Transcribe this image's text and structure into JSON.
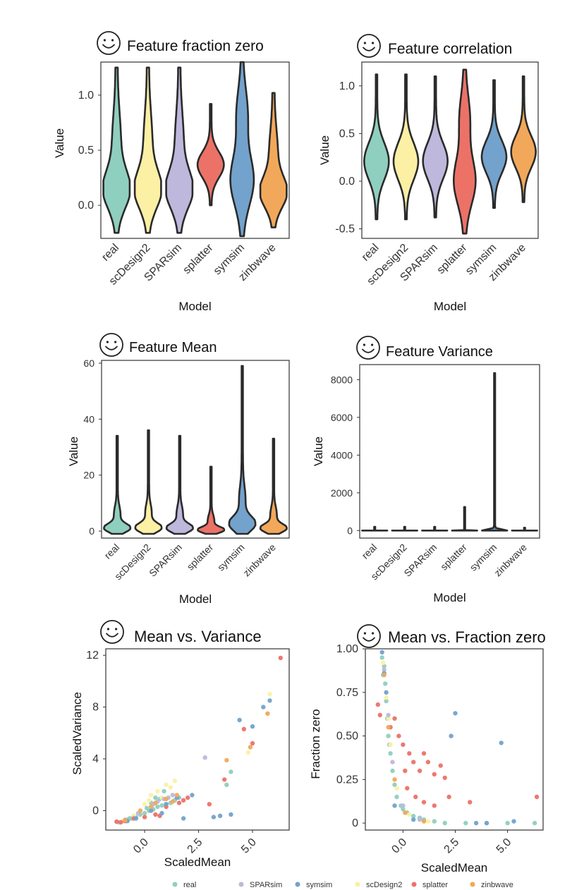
{
  "colors": {
    "real": "#8fcfbf",
    "scDesign2": "#fbf0a4",
    "SPARsim": "#bdb8dc",
    "splatter": "#ec7268",
    "symsim": "#73a2cc",
    "zinbwave": "#f2a85a",
    "outline": "#2a2a2a"
  },
  "icons": [
    "smiley-icon"
  ],
  "chart_data": [
    {
      "type": "violin",
      "title": "Feature fraction zero",
      "xlabel": "Model",
      "ylabel": "Value",
      "ylim": [
        -0.3,
        1.3
      ],
      "yticks": [
        0.0,
        0.5,
        1.0
      ],
      "ytick_labels": [
        "0.0",
        "0.5",
        "1.0"
      ],
      "categories": [
        "real",
        "scDesign2",
        "SPARsim",
        "splatter",
        "symsim",
        "zinbwave"
      ],
      "series": [
        {
          "name": "real",
          "min": -0.25,
          "max": 1.25,
          "median": 0.15,
          "shape": "wide-bottom"
        },
        {
          "name": "scDesign2",
          "min": -0.25,
          "max": 1.25,
          "median": 0.2,
          "shape": "wide-bottom"
        },
        {
          "name": "SPARsim",
          "min": -0.25,
          "max": 1.25,
          "median": 0.25,
          "shape": "wide-bottom"
        },
        {
          "name": "splatter",
          "min": 0.0,
          "max": 0.92,
          "median": 0.4,
          "shape": "center"
        },
        {
          "name": "symsim",
          "min": -0.28,
          "max": 1.3,
          "median": 0.25,
          "shape": "spread"
        },
        {
          "name": "zinbwave",
          "min": -0.2,
          "max": 1.02,
          "median": 0.2,
          "shape": "wide-bottom"
        }
      ]
    },
    {
      "type": "violin",
      "title": "Feature correlation",
      "xlabel": "Model",
      "ylabel": "Value",
      "ylim": [
        -0.6,
        1.25
      ],
      "yticks": [
        -0.5,
        0.0,
        0.5,
        1.0
      ],
      "ytick_labels": [
        "-0.5",
        "0.0",
        "0.5",
        "1.0"
      ],
      "categories": [
        "real",
        "scDesign2",
        "SPARsim",
        "splatter",
        "symsim",
        "zinbwave"
      ],
      "series": [
        {
          "name": "real",
          "min": -0.4,
          "max": 1.12,
          "median": 0.1,
          "shape": "center"
        },
        {
          "name": "scDesign2",
          "min": -0.4,
          "max": 1.12,
          "median": 0.1,
          "shape": "center"
        },
        {
          "name": "SPARsim",
          "min": -0.38,
          "max": 1.1,
          "median": 0.15,
          "shape": "center"
        },
        {
          "name": "splatter",
          "min": -0.55,
          "max": 1.17,
          "median": 0.0,
          "shape": "spread"
        },
        {
          "name": "symsim",
          "min": -0.28,
          "max": 1.06,
          "median": 0.1,
          "shape": "center"
        },
        {
          "name": "zinbwave",
          "min": -0.22,
          "max": 1.1,
          "median": 0.2,
          "shape": "center"
        }
      ]
    },
    {
      "type": "violin",
      "title": "Feature Mean",
      "xlabel": "Model",
      "ylabel": "Value",
      "ylim": [
        -2.5,
        61
      ],
      "yticks": [
        0,
        20,
        40,
        60
      ],
      "ytick_labels": [
        "0",
        "20",
        "40",
        "60"
      ],
      "categories": [
        "real",
        "scDesign2",
        "SPARsim",
        "splatter",
        "symsim",
        "zinbwave"
      ],
      "series": [
        {
          "name": "real",
          "min": -1,
          "max": 34,
          "median": 2,
          "shape": "base"
        },
        {
          "name": "scDesign2",
          "min": -1,
          "max": 36,
          "median": 2,
          "shape": "base"
        },
        {
          "name": "SPARsim",
          "min": -1,
          "max": 34,
          "median": 2,
          "shape": "base"
        },
        {
          "name": "splatter",
          "min": -1,
          "max": 23,
          "median": 3,
          "shape": "base"
        },
        {
          "name": "symsim",
          "min": -1,
          "max": 59,
          "median": 2,
          "shape": "base"
        },
        {
          "name": "zinbwave",
          "min": -1,
          "max": 33,
          "median": 2,
          "shape": "base"
        }
      ]
    },
    {
      "type": "violin",
      "title": "Feature Variance",
      "xlabel": "Model",
      "ylabel": "Value",
      "ylim": [
        -400,
        8800
      ],
      "yticks": [
        0,
        2000,
        4000,
        6000,
        8000
      ],
      "ytick_labels": [
        "0",
        "2000",
        "4000",
        "6000",
        "8000"
      ],
      "categories": [
        "real",
        "scDesign2",
        "SPARsim",
        "splatter",
        "symsim",
        "zinbwave"
      ],
      "series": [
        {
          "name": "real",
          "min": 0,
          "max": 200,
          "median": 0,
          "shape": "flat"
        },
        {
          "name": "scDesign2",
          "min": 0,
          "max": 200,
          "median": 0,
          "shape": "flat"
        },
        {
          "name": "SPARsim",
          "min": 0,
          "max": 200,
          "median": 0,
          "shape": "flat"
        },
        {
          "name": "splatter",
          "min": 0,
          "max": 1250,
          "median": 0,
          "shape": "flat"
        },
        {
          "name": "symsim",
          "min": 0,
          "max": 8350,
          "median": 0,
          "shape": "flat"
        },
        {
          "name": "zinbwave",
          "min": 0,
          "max": 150,
          "median": 0,
          "shape": "flat"
        }
      ]
    },
    {
      "type": "scatter",
      "title": "Mean vs. Variance",
      "xlabel": "ScaledMean",
      "ylabel": "ScaledVariance",
      "xlim": [
        -1.8,
        6.7
      ],
      "ylim": [
        -1.5,
        12.5
      ],
      "xticks": [
        0.0,
        2.5,
        5.0
      ],
      "xtick_labels": [
        "0.0",
        "2.5",
        "5.0"
      ],
      "yticks": [
        0,
        4,
        8,
        12
      ],
      "ytick_labels": [
        "0",
        "4",
        "8",
        "12"
      ],
      "series": [
        {
          "name": "real",
          "points": [
            [
              -1.2,
              -0.9
            ],
            [
              -1.0,
              -0.8
            ],
            [
              -0.8,
              -0.7
            ],
            [
              -0.6,
              -0.6
            ],
            [
              -0.4,
              -0.5
            ],
            [
              -0.2,
              -0.3
            ],
            [
              0.0,
              -0.2
            ],
            [
              0.2,
              0.0
            ],
            [
              0.4,
              0.1
            ],
            [
              0.6,
              0.3
            ],
            [
              0.8,
              0.4
            ],
            [
              1.0,
              0.5
            ],
            [
              1.2,
              0.6
            ],
            [
              0.5,
              1.0
            ],
            [
              0.9,
              1.5
            ],
            [
              1.4,
              0.8
            ],
            [
              3.8,
              2.0
            ],
            [
              4.0,
              3.0
            ],
            [
              -0.9,
              -0.8
            ],
            [
              -0.7,
              -0.6
            ],
            [
              0.1,
              0.2
            ],
            [
              0.3,
              0.6
            ],
            [
              0.7,
              0.9
            ],
            [
              1.6,
              1.0
            ],
            [
              -0.5,
              -0.4
            ]
          ]
        },
        {
          "name": "scDesign2",
          "points": [
            [
              -1.0,
              -0.8
            ],
            [
              -0.5,
              -0.4
            ],
            [
              0.0,
              0.5
            ],
            [
              0.3,
              1.2
            ],
            [
              0.6,
              1.5
            ],
            [
              1.0,
              2.0
            ],
            [
              1.4,
              2.3
            ],
            [
              0.8,
              1.0
            ],
            [
              4.8,
              4.5
            ],
            [
              5.8,
              9.0
            ],
            [
              0.2,
              0.8
            ],
            [
              1.2,
              1.8
            ]
          ]
        },
        {
          "name": "SPARsim",
          "points": [
            [
              -0.9,
              -0.7
            ],
            [
              -0.3,
              -0.2
            ],
            [
              0.4,
              0.5
            ],
            [
              0.9,
              0.9
            ],
            [
              1.3,
              1.2
            ],
            [
              2.8,
              4.1
            ],
            [
              0.6,
              0.7
            ],
            [
              1.1,
              1.0
            ]
          ]
        },
        {
          "name": "splatter",
          "points": [
            [
              -1.3,
              -0.85
            ],
            [
              -1.1,
              -0.9
            ],
            [
              -0.9,
              -0.8
            ],
            [
              -0.5,
              -0.6
            ],
            [
              0.0,
              -0.5
            ],
            [
              0.5,
              -0.3
            ],
            [
              1.0,
              0.3
            ],
            [
              1.6,
              0.6
            ],
            [
              1.8,
              0.8
            ],
            [
              3.0,
              0.5
            ],
            [
              3.7,
              2.4
            ],
            [
              4.6,
              6.3
            ],
            [
              5.0,
              5.2
            ],
            [
              6.3,
              11.8
            ],
            [
              2.0,
              1.0
            ],
            [
              0.7,
              -0.4
            ]
          ]
        },
        {
          "name": "symsim",
          "points": [
            [
              -0.8,
              -0.8
            ],
            [
              -0.4,
              -0.6
            ],
            [
              0.3,
              0.0
            ],
            [
              1.0,
              0.5
            ],
            [
              1.5,
              1.0
            ],
            [
              2.2,
              1.2
            ],
            [
              3.5,
              -0.4
            ],
            [
              3.2,
              -0.5
            ],
            [
              4.0,
              -0.3
            ],
            [
              4.4,
              7.0
            ],
            [
              5.5,
              8.0
            ],
            [
              5.0,
              6.5
            ],
            [
              5.8,
              8.5
            ],
            [
              1.8,
              -0.6
            ],
            [
              0.8,
              -0.2
            ]
          ]
        },
        {
          "name": "zinbwave",
          "points": [
            [
              -0.9,
              -0.75
            ],
            [
              -0.2,
              0.0
            ],
            [
              0.5,
              0.6
            ],
            [
              1.0,
              0.9
            ],
            [
              1.5,
              1.2
            ],
            [
              3.8,
              3.9
            ],
            [
              4.9,
              4.9
            ],
            [
              5.7,
              7.5
            ],
            [
              0.3,
              0.3
            ],
            [
              1.3,
              0.7
            ]
          ]
        }
      ]
    },
    {
      "type": "scatter",
      "title": "Mean vs. Fraction zero",
      "xlabel": "ScaledMean",
      "ylabel": "Fraction zero",
      "xlim": [
        -1.8,
        6.7
      ],
      "ylim": [
        -0.04,
        1.0
      ],
      "xticks": [
        0.0,
        2.5,
        5.0
      ],
      "xtick_labels": [
        "0.0",
        "2.5",
        "5.0"
      ],
      "yticks": [
        0,
        0.25,
        0.5,
        0.75,
        1.0
      ],
      "ytick_labels": [
        "0",
        "0.25",
        "0.50",
        "0.75",
        "1.00"
      ],
      "series": [
        {
          "name": "real",
          "points": [
            [
              -1.0,
              0.95
            ],
            [
              -0.9,
              0.9
            ],
            [
              -0.85,
              0.8
            ],
            [
              -0.8,
              0.7
            ],
            [
              -0.75,
              0.6
            ],
            [
              -0.7,
              0.5
            ],
            [
              -0.6,
              0.4
            ],
            [
              -0.5,
              0.3
            ],
            [
              -0.4,
              0.22
            ],
            [
              -0.3,
              0.15
            ],
            [
              -0.1,
              0.1
            ],
            [
              0.2,
              0.06
            ],
            [
              0.5,
              0.04
            ],
            [
              1.0,
              0.02
            ],
            [
              1.5,
              0.01
            ],
            [
              2.0,
              0.0
            ],
            [
              3.0,
              0.0
            ],
            [
              4.0,
              0.0
            ],
            [
              5.0,
              0.0
            ],
            [
              6.3,
              0.0
            ],
            [
              -0.95,
              0.85
            ],
            [
              -0.65,
              0.45
            ],
            [
              0.0,
              0.08
            ],
            [
              0.8,
              0.03
            ]
          ]
        },
        {
          "name": "scDesign2",
          "points": [
            [
              -0.95,
              0.92
            ],
            [
              -0.8,
              0.72
            ],
            [
              -0.6,
              0.45
            ],
            [
              -0.3,
              0.2
            ],
            [
              0.3,
              0.05
            ],
            [
              1.2,
              0.01
            ],
            [
              -0.7,
              0.6
            ]
          ]
        },
        {
          "name": "SPARsim",
          "points": [
            [
              -0.9,
              0.88
            ],
            [
              -0.7,
              0.62
            ],
            [
              -0.5,
              0.35
            ],
            [
              0.0,
              0.1
            ],
            [
              0.8,
              0.02
            ]
          ]
        },
        {
          "name": "splatter",
          "points": [
            [
              -1.2,
              0.68
            ],
            [
              -1.1,
              0.62
            ],
            [
              -0.6,
              0.55
            ],
            [
              -0.2,
              0.5
            ],
            [
              0.0,
              0.45
            ],
            [
              0.3,
              0.4
            ],
            [
              0.5,
              0.35
            ],
            [
              0.8,
              0.3
            ],
            [
              1.0,
              0.4
            ],
            [
              1.2,
              0.35
            ],
            [
              1.5,
              0.28
            ],
            [
              1.8,
              0.33
            ],
            [
              2.0,
              0.26
            ],
            [
              0.2,
              0.2
            ],
            [
              0.6,
              0.15
            ],
            [
              1.0,
              0.12
            ],
            [
              1.5,
              0.1
            ],
            [
              2.2,
              0.15
            ],
            [
              3.2,
              0.12
            ],
            [
              6.4,
              0.15
            ],
            [
              -0.4,
              0.6
            ],
            [
              0.1,
              0.3
            ]
          ]
        },
        {
          "name": "symsim",
          "points": [
            [
              -1.0,
              0.98
            ],
            [
              -0.9,
              0.86
            ],
            [
              -0.8,
              0.75
            ],
            [
              2.5,
              0.63
            ],
            [
              2.3,
              0.5
            ],
            [
              4.7,
              0.46
            ],
            [
              3.5,
              0.0
            ],
            [
              4.0,
              0.0
            ],
            [
              5.3,
              0.01
            ],
            [
              -0.4,
              0.1
            ],
            [
              0.5,
              0.02
            ]
          ]
        },
        {
          "name": "zinbwave",
          "points": [
            [
              -0.9,
              0.85
            ],
            [
              -0.7,
              0.55
            ],
            [
              -0.4,
              0.25
            ],
            [
              0.1,
              0.06
            ],
            [
              1.0,
              0.01
            ]
          ]
        }
      ]
    }
  ],
  "legend": {
    "placement": "bottom",
    "entries": [
      "real",
      "SPARsim",
      "symsim",
      "scDesign2",
      "splatter",
      "zinbwave"
    ]
  }
}
